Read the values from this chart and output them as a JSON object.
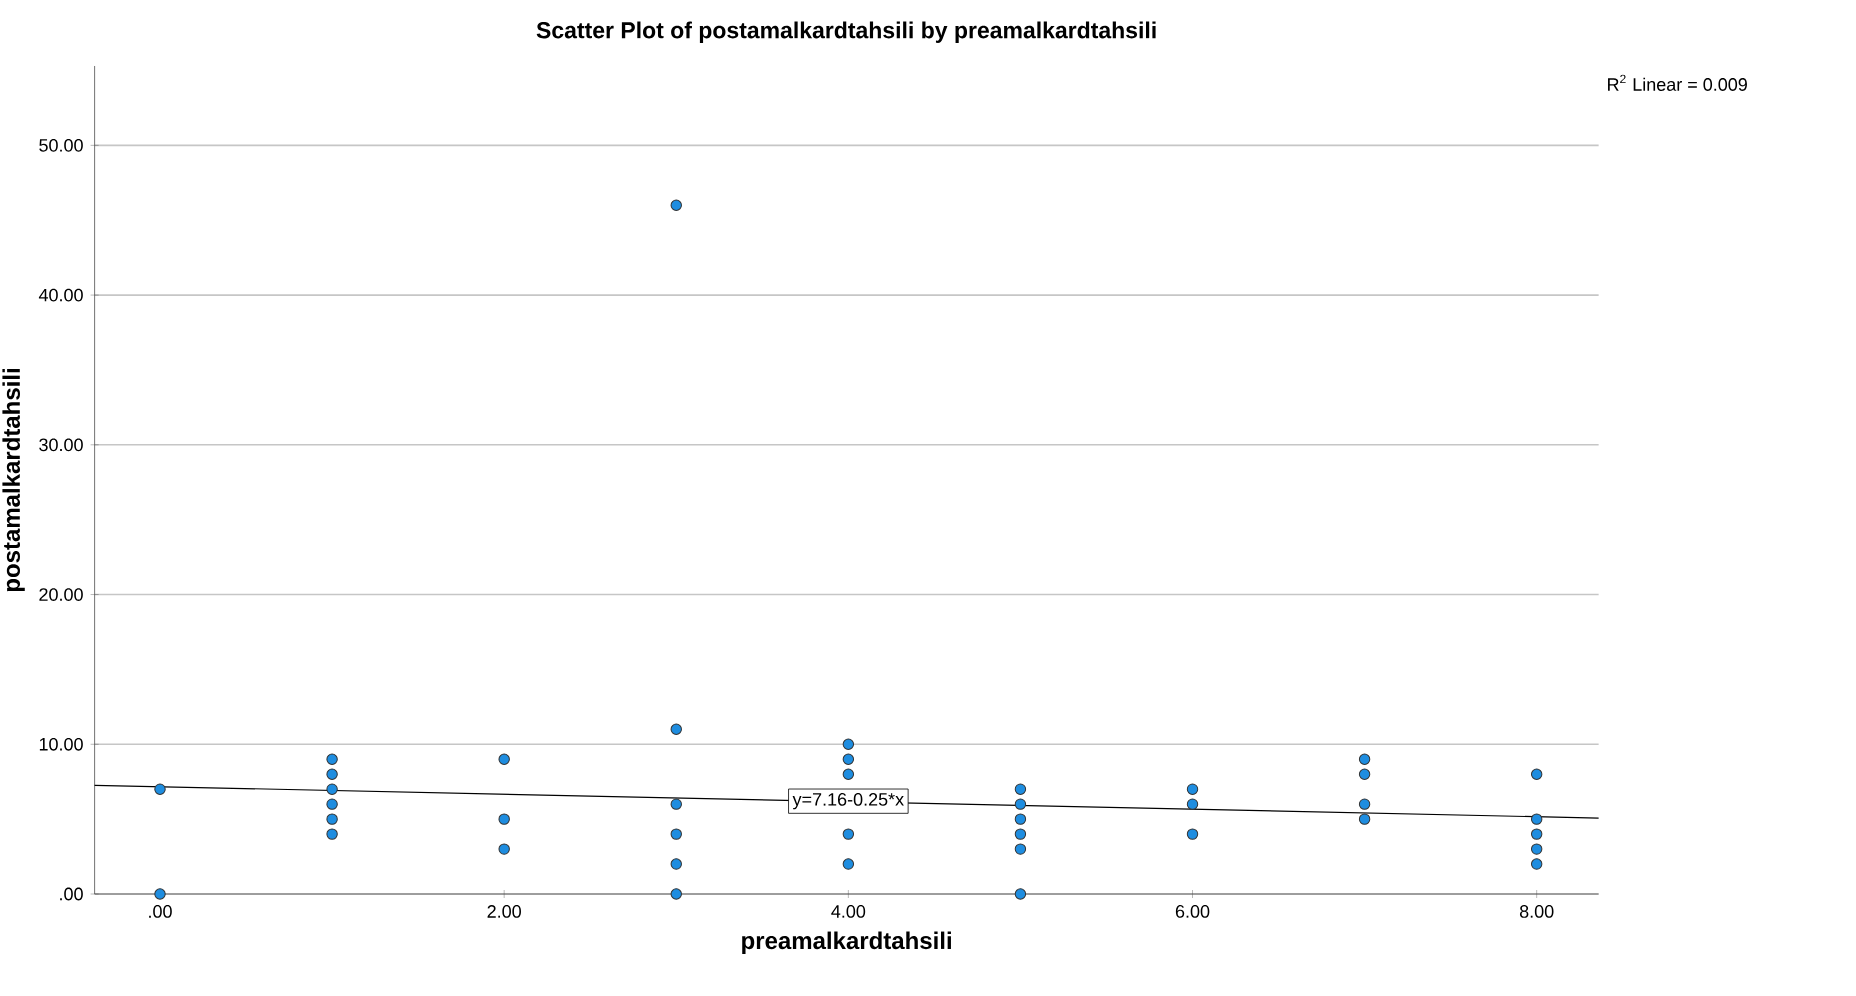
{
  "chart_data": {
    "type": "scatter",
    "title": "Scatter Plot of postamalkardtahsili by preamalkardtahsili",
    "xlabel": "preamalkardtahsili",
    "ylabel": "postamalkardtahsili",
    "xlim": [
      -0.38,
      8.36
    ],
    "ylim": [
      0,
      55.3
    ],
    "xticks": [
      {
        "value": 0,
        "label": ".00"
      },
      {
        "value": 2,
        "label": "2.00"
      },
      {
        "value": 4,
        "label": "4.00"
      },
      {
        "value": 6,
        "label": "6.00"
      },
      {
        "value": 8,
        "label": "8.00"
      }
    ],
    "yticks": [
      {
        "value": 0,
        "label": ".00"
      },
      {
        "value": 10,
        "label": "10.00"
      },
      {
        "value": 20,
        "label": "20.00"
      },
      {
        "value": 30,
        "label": "30.00"
      },
      {
        "value": 40,
        "label": "40.00"
      },
      {
        "value": 50,
        "label": "50.00"
      }
    ],
    "grid": "y",
    "marker": "circle",
    "series": [
      {
        "color": "#1e8de0",
        "x": [
          0,
          0,
          1,
          1,
          1,
          1,
          1,
          1,
          2,
          2,
          2,
          3,
          3,
          3,
          3,
          3,
          3,
          4,
          4,
          4,
          4,
          4,
          5,
          5,
          5,
          5,
          5,
          5,
          6,
          6,
          6,
          7,
          7,
          7,
          7,
          8,
          8,
          8,
          8,
          8
        ],
        "values": [
          7,
          0,
          9,
          8,
          7,
          6,
          5,
          4,
          9,
          5,
          3,
          46,
          11,
          6,
          4,
          2,
          0,
          10,
          9,
          8,
          4,
          2,
          7,
          6,
          5,
          4,
          3,
          0,
          7,
          6,
          4,
          9,
          8,
          6,
          5,
          8,
          5,
          4,
          3,
          2
        ]
      },
      {
        "type": "line",
        "marker": "none",
        "color": "#000000",
        "x": [
          -0.38,
          8.36
        ],
        "values": [
          7.26,
          5.07
        ]
      }
    ],
    "annotations": [
      {
        "text": "y=7.16-0.25*x",
        "x": 4,
        "y": 6.2
      },
      "R$^{2}$ Linear = 0.009"
    ]
  }
}
